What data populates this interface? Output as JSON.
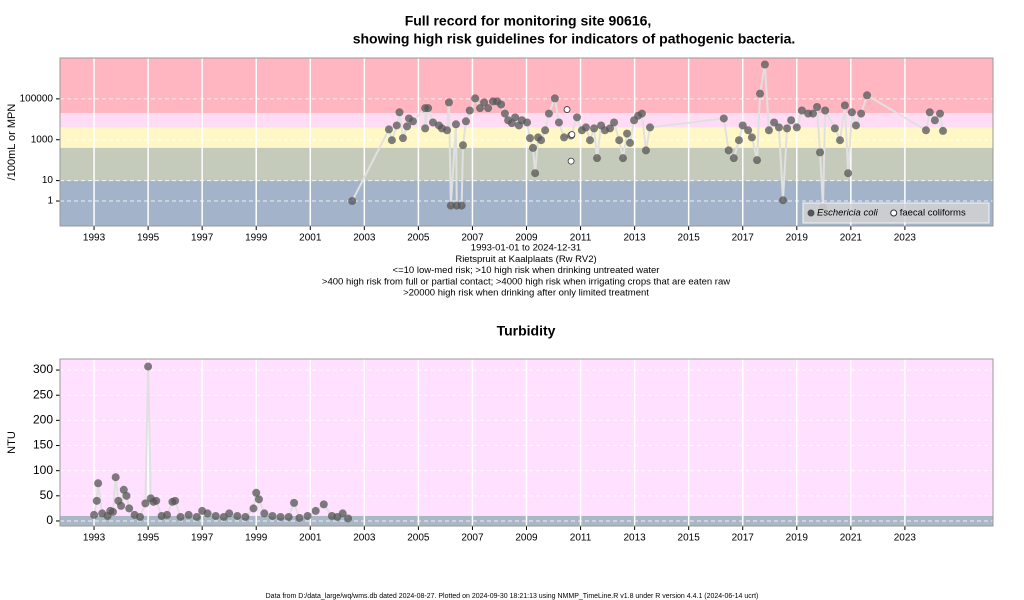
{
  "chart_data": [
    {
      "type": "scatter",
      "title": [
        "Full record for monitoring site 90616,",
        "showing high risk guidelines for indicators of pathogenic bacteria."
      ],
      "ylabel": "/100mL or MPN",
      "notes": [
        "1993-01-01 to 2024-12-31",
        "Rietspruit at Kaalplaats (Rw RV2)",
        "<=10 low-med risk; >10 high risk when drinking untreated water",
        ">400 high risk from full or partial contact; >4000 high risk when irrigating crops that are eaten raw",
        ">20000 high risk when drinking after only limited treatment"
      ],
      "log_y": true,
      "xlim": [
        1991.74,
        2026.26
      ],
      "xticks": [
        1993,
        1995,
        1997,
        1999,
        2001,
        2003,
        2005,
        2007,
        2009,
        2011,
        2013,
        2015,
        2017,
        2019,
        2021,
        2023
      ],
      "ylim": [
        0.06,
        10000000
      ],
      "yticks": [
        1,
        10,
        1000,
        100000
      ],
      "grid": true,
      "legend": "lower right",
      "bands": [
        {
          "from": 20000,
          "to": 10000000,
          "color": "#ffb6c1"
        },
        {
          "from": 4000,
          "to": 20000,
          "color": "#ffdcf4"
        },
        {
          "from": 400,
          "to": 4000,
          "color": "#fff8c6"
        },
        {
          "from": 10,
          "to": 400,
          "color": "#c5cbbb"
        },
        {
          "from": 0.06,
          "to": 10,
          "color": "#a3b3c9"
        }
      ],
      "series": [
        {
          "name": "Eschericia coli",
          "color": "#555555",
          "marker": "filled",
          "x": [
            2002.55,
            2003.91,
            2004.02,
            2004.2,
            2004.3,
            2004.43,
            2004.58,
            2004.65,
            2004.8,
            2005.25,
            2005.25,
            2005.36,
            2005.54,
            2005.76,
            2005.87,
            2006.06,
            2006.13,
            2006.2,
            2006.39,
            2006.42,
            2006.6,
            2006.65,
            2006.76,
            2006.9,
            2007.1,
            2007.28,
            2007.43,
            2007.58,
            2007.76,
            2007.91,
            2008.06,
            2008.2,
            2008.32,
            2008.46,
            2008.58,
            2008.72,
            2008.83,
            2009.02,
            2009.13,
            2009.24,
            2009.32,
            2009.43,
            2009.54,
            2009.69,
            2009.83,
            2010.05,
            2010.2,
            2010.39,
            2010.65,
            2010.87,
            2011.05,
            2011.2,
            2011.35,
            2011.5,
            2011.61,
            2011.76,
            2011.9,
            2012.09,
            2012.24,
            2012.43,
            2012.57,
            2012.72,
            2012.83,
            2012.98,
            2013.13,
            2013.27,
            2013.42,
            2013.57,
            2016.3,
            2016.48,
            2016.67,
            2016.86,
            2017.0,
            2017.2,
            2017.34,
            2017.53,
            2017.64,
            2017.82,
            2017.97,
            2018.16,
            2018.34,
            2018.49,
            2018.64,
            2018.79,
            2019.0,
            2019.19,
            2019.42,
            2019.6,
            2019.75,
            2019.86,
            2019.97,
            2020.05,
            2020.41,
            2020.6,
            2020.78,
            2020.9,
            2021.04,
            2021.19,
            2021.38,
            2021.6,
            2023.78,
            2023.92,
            2024.11,
            2024.3,
            2024.41
          ],
          "values": [
            1,
            3200,
            950,
            5000,
            22000,
            1200,
            4500,
            11000,
            8000,
            35000,
            3600,
            35000,
            7000,
            5000,
            3600,
            2900,
            67000,
            0.6,
            5700,
            0.6,
            0.6,
            540,
            8000,
            27000,
            105000,
            35000,
            67000,
            35000,
            75000,
            75000,
            53000,
            19000,
            9000,
            6500,
            12500,
            5000,
            9000,
            7000,
            1200,
            400,
            23,
            1300,
            950,
            2900,
            19000,
            105000,
            7000,
            1300,
            1600,
            12500,
            2900,
            4000,
            950,
            3600,
            125,
            5000,
            2900,
            3600,
            7000,
            950,
            125,
            2000,
            700,
            9000,
            15000,
            19000,
            300,
            4000,
            11000,
            300,
            125,
            950,
            5000,
            2900,
            1300,
            100,
            180000,
            4800000,
            2900,
            7000,
            4000,
            1.1,
            3600,
            9000,
            4000,
            27000,
            19000,
            19000,
            40000,
            240,
            0.5,
            27000,
            3600,
            950,
            48000,
            23,
            22000,
            5000,
            19000,
            150000,
            2900,
            22000,
            9000,
            19000,
            2700
          ]
        },
        {
          "name": "faecal coliforms",
          "color": "#333333",
          "marker": "open",
          "x": [
            2010.5,
            2010.65,
            2010.68
          ],
          "values": [
            30000,
            90,
            1800
          ]
        }
      ]
    },
    {
      "type": "scatter",
      "title": [
        "Turbidity"
      ],
      "ylabel": "NTU",
      "log_y": false,
      "xlim": [
        1991.74,
        2026.26
      ],
      "xticks": [
        1993,
        1995,
        1997,
        1999,
        2001,
        2003,
        2005,
        2007,
        2009,
        2011,
        2013,
        2015,
        2017,
        2019,
        2021,
        2023
      ],
      "ylim": [
        -10,
        322
      ],
      "yticks": [
        0,
        50,
        100,
        150,
        200,
        250,
        300
      ],
      "grid": true,
      "bands": [
        {
          "from": 10,
          "to": 322,
          "color": "#ffe0ff"
        },
        {
          "from": -10,
          "to": 10,
          "color": "#a9b8c4"
        }
      ],
      "series": [
        {
          "color": "#555555",
          "marker": "filled",
          "x": [
            1993.0,
            1993.1,
            1993.15,
            1993.3,
            1993.5,
            1993.6,
            1993.7,
            1993.8,
            1993.9,
            1994.0,
            1994.1,
            1994.2,
            1994.3,
            1994.5,
            1994.7,
            1994.9,
            1995.0,
            1995.1,
            1995.2,
            1995.3,
            1995.5,
            1995.7,
            1995.9,
            1996.0,
            1996.2,
            1996.5,
            1996.8,
            1997.0,
            1997.2,
            1997.5,
            1997.8,
            1998.0,
            1998.3,
            1998.6,
            1998.9,
            1999.0,
            1999.1,
            1999.3,
            1999.6,
            1999.9,
            2000.2,
            2000.4,
            2000.6,
            2000.9,
            2001.2,
            2001.5,
            2001.8,
            2002.0,
            2002.2,
            2002.4
          ],
          "values": [
            12,
            40,
            75,
            15,
            10,
            20,
            18,
            87,
            40,
            30,
            62,
            50,
            25,
            12,
            8,
            35,
            307,
            45,
            38,
            40,
            10,
            12,
            38,
            40,
            8,
            12,
            8,
            20,
            15,
            10,
            8,
            15,
            10,
            8,
            25,
            56,
            43,
            15,
            10,
            8,
            8,
            36,
            6,
            10,
            20,
            33,
            10,
            8,
            15,
            5
          ]
        }
      ]
    }
  ],
  "footer": "Data from D:/data_large/wq/wms.db dated 2024-08-27. Plotted on 2024-09-30 18:21:13 using NMMP_TimeLine.R v1.8 under R version 4.4.1 (2024-06-14 ucrt)"
}
